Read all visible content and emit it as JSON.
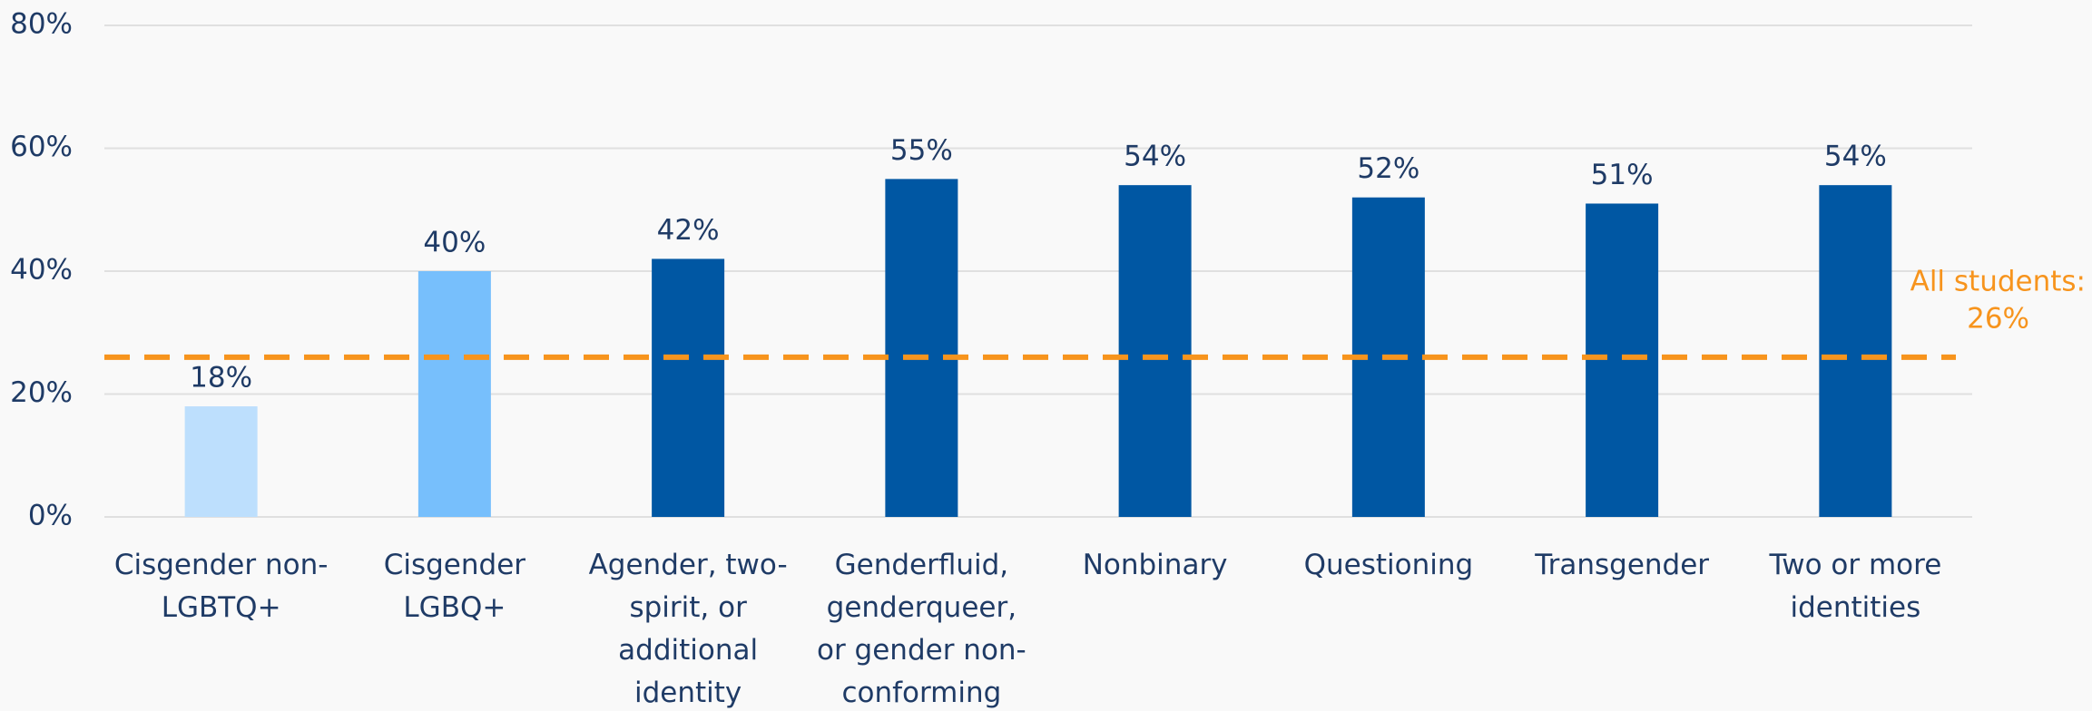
{
  "chart_data": {
    "type": "bar",
    "categories": [
      "Cisgender non-LGBTQ+",
      "Cisgender LGBQ+",
      "Agender, two-spirit, or additional identity",
      "Genderfluid, genderqueer, or gender non-conforming",
      "Nonbinary",
      "Questioning",
      "Transgender",
      "Two or more identities"
    ],
    "values": [
      18,
      40,
      42,
      55,
      54,
      52,
      51,
      54
    ],
    "value_labels": [
      "18%",
      "40%",
      "42%",
      "55%",
      "54%",
      "52%",
      "51%",
      "54%"
    ],
    "colors": [
      "#bddffd",
      "#77bffc",
      "#0057a3",
      "#0057a3",
      "#0057a3",
      "#0057a3",
      "#0057a3",
      "#0057a3"
    ],
    "ylim": [
      0,
      80
    ],
    "yticks": [
      {
        "value": 0,
        "label": "0%"
      },
      {
        "value": 20,
        "label": "20%"
      },
      {
        "value": 40,
        "label": "40%"
      },
      {
        "value": 60,
        "label": "60%"
      },
      {
        "value": 80,
        "label": "80%"
      }
    ],
    "grid": true,
    "reference_line": {
      "value": 26,
      "label": "All students:",
      "value_label": "26%",
      "color": "#f7941d"
    }
  }
}
